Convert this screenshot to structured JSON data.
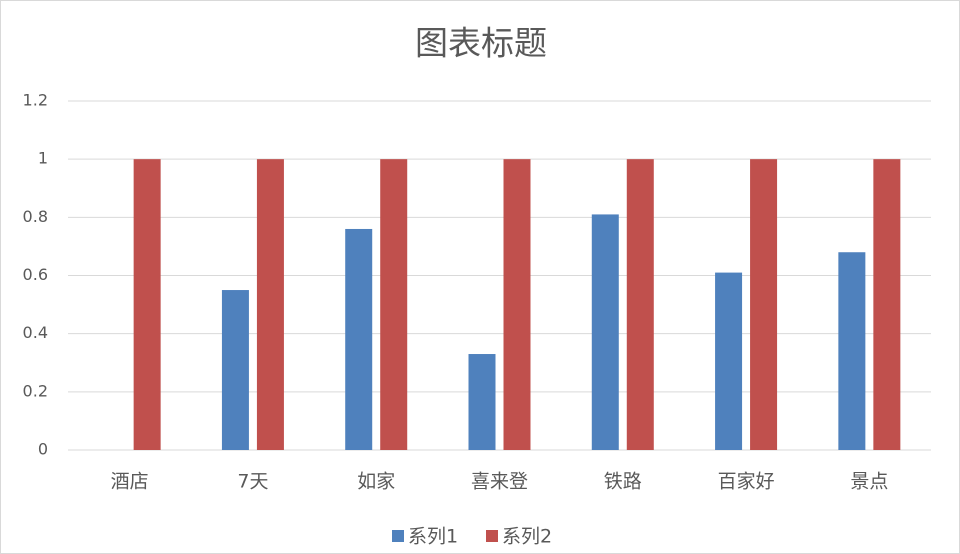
{
  "chart_data": {
    "type": "bar",
    "title": "图表标题",
    "categories": [
      "酒店",
      "7天",
      "如家",
      "喜来登",
      "铁路",
      "百家好",
      "景点"
    ],
    "series": [
      {
        "name": "系列1",
        "color": "#4f81bd",
        "values": [
          0,
          0.55,
          0.76,
          0.33,
          0.81,
          0.61,
          0.68
        ]
      },
      {
        "name": "系列2",
        "color": "#c0504d",
        "values": [
          1,
          1,
          1,
          1,
          1,
          1,
          1
        ]
      }
    ],
    "ylim": [
      0,
      1.2
    ],
    "yticks": [
      0,
      0.2,
      0.4,
      0.6,
      0.8,
      1,
      1.2
    ],
    "grid": true,
    "legend": "bottom"
  }
}
